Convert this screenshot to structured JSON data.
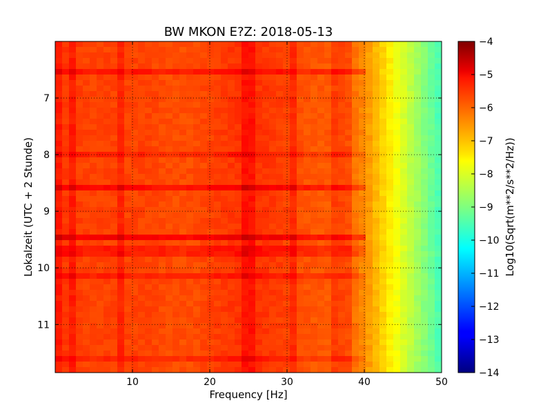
{
  "chart_data": {
    "type": "heatmap",
    "title": "BW MKON E?Z: 2018-05-13",
    "xlabel": "Frequency [Hz]",
    "ylabel": "Lokalzeit (UTC + 2 Stunde)",
    "xlim": [
      0,
      50
    ],
    "ylim": [
      6.0,
      11.85
    ],
    "y_inverted": true,
    "x_ticks": [
      10,
      20,
      30,
      40,
      50
    ],
    "y_ticks": [
      7,
      8,
      9,
      10,
      11
    ],
    "grid": true,
    "colormap": "jet",
    "colorbar": {
      "label": "Log10(Sqrt(m**2/s**2/Hz))",
      "range": [
        -14,
        -4
      ],
      "ticks": [
        -4,
        -5,
        -6,
        -7,
        -8,
        -9,
        -10,
        -11,
        -12,
        -13,
        -14
      ]
    },
    "spectrum_profile": {
      "frequency_hz": [
        0,
        2,
        4,
        6,
        8,
        10,
        12,
        15,
        18,
        20,
        22,
        25,
        28,
        30,
        33,
        35,
        37,
        38,
        39,
        40,
        41,
        42,
        43,
        44,
        45,
        46,
        47,
        48,
        49,
        50
      ],
      "log10_amplitude": [
        -5.8,
        -5.8,
        -5.9,
        -5.9,
        -5.9,
        -5.9,
        -5.9,
        -6.0,
        -6.0,
        -5.9,
        -5.8,
        -5.7,
        -5.8,
        -5.9,
        -6.1,
        -6.1,
        -6.2,
        -6.3,
        -6.4,
        -6.6,
        -6.9,
        -7.2,
        -7.5,
        -7.8,
        -8.1,
        -8.4,
        -8.7,
        -9.0,
        -9.3,
        -9.6
      ]
    },
    "horizontal_bands": [
      {
        "time": 6.55,
        "delta_log10": 0.45
      },
      {
        "time": 8.0,
        "delta_log10": 0.3
      },
      {
        "time": 8.55,
        "delta_log10": 0.6
      },
      {
        "time": 9.5,
        "delta_log10": 0.7
      },
      {
        "time": 9.7,
        "delta_log10": 0.4
      },
      {
        "time": 10.18,
        "delta_log10": 0.35
      },
      {
        "time": 11.62,
        "delta_log10": 0.3
      }
    ],
    "vertical_lines_hz": [
      0.5,
      2.5,
      8.5,
      25.0,
      30.5,
      36.5,
      37.5
    ]
  }
}
